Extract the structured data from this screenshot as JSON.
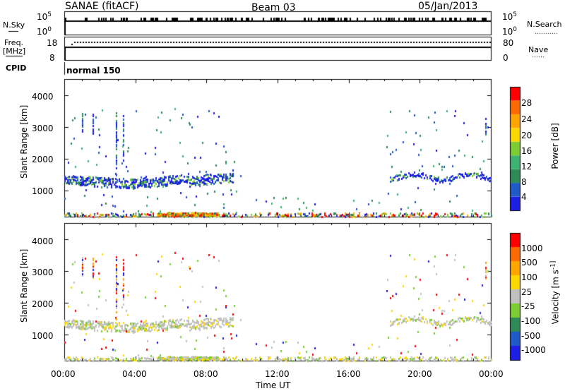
{
  "header": {
    "title": "SANAE (fitACF)",
    "beam": "Beam 03",
    "date": "05/Jan/2013"
  },
  "top_panels": {
    "nsky_label": "N.Sky",
    "nsky_tick_top": "10^5",
    "nsky_tick_bottom": "10^0",
    "nsearch_label": "N.Search",
    "nsearch_tick_top": "10^5",
    "nsearch_tick_bottom": "10^0",
    "freq_label_1": "Freq.",
    "freq_label_2": "[MHz]",
    "freq_tick_top": "18",
    "freq_tick_bottom": "8",
    "nave_label": "Nave",
    "nave_tick_top": "80",
    "nave_tick_bottom": "0",
    "cpid_label": "CPID",
    "cpid_value": "normal 150"
  },
  "chart_data": [
    {
      "type": "heatmap",
      "name": "power",
      "ylabel": "Slant Range [km]",
      "yticks": [
        "4000",
        "3000",
        "2000",
        "1000"
      ],
      "ylim": [
        180,
        4500
      ],
      "colorbar_label": "Power [dB]",
      "colorbar_ticks": [
        "28",
        "24",
        "20",
        "16",
        "12",
        "8",
        "4"
      ],
      "colorbar_colors": [
        "#1e1ee6",
        "#1e5ac8",
        "#2e8b57",
        "#3cb371",
        "#7ccd32",
        "#ffd700",
        "#ffa500",
        "#ff6a00",
        "#ff0000"
      ]
    },
    {
      "type": "heatmap",
      "name": "velocity",
      "ylabel": "Slant Range [km]",
      "yticks": [
        "4000",
        "3000",
        "2000",
        "1000"
      ],
      "ylim": [
        180,
        4500
      ],
      "colorbar_label": "Velocity [m s^-1]",
      "colorbar_ticks": [
        "1000",
        "500",
        "100",
        "25",
        "-25",
        "-100",
        "-500",
        "-1000"
      ],
      "colorbar_colors": [
        "#1e1ee6",
        "#1e5ac8",
        "#2e8b57",
        "#7ccd32",
        "#c0c0c0",
        "#ffd700",
        "#ffa500",
        "#ff6a00",
        "#ff0000"
      ]
    }
  ],
  "x_axis": {
    "label": "Time UT",
    "ticks": [
      "00:00",
      "04:00",
      "08:00",
      "12:00",
      "16:00",
      "20:00",
      "00:00"
    ]
  }
}
